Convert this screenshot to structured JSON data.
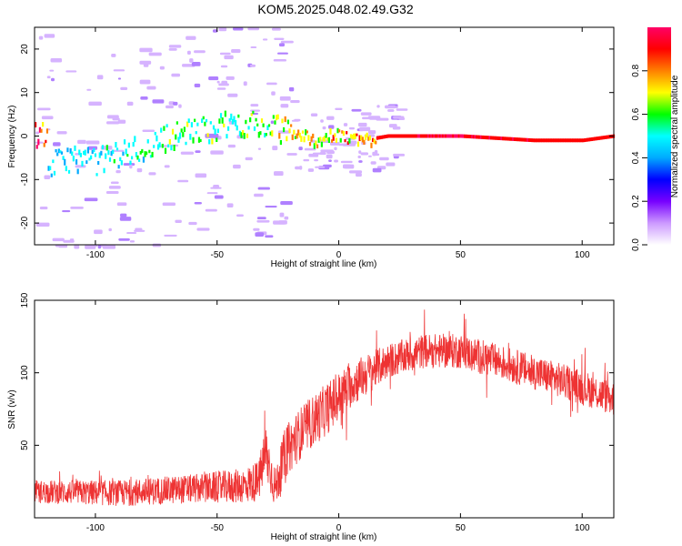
{
  "title": "KOM5.2025.048.02.49.G32",
  "chart_data": [
    {
      "type": "heatmap",
      "xlabel": "Height of straight line (km)",
      "ylabel": "Frequency (Hz)",
      "xlim": [
        -125,
        113
      ],
      "ylim": [
        -25,
        25
      ],
      "xticks": [
        -100,
        -50,
        0,
        50,
        100
      ],
      "yticks": [
        -20,
        -10,
        0,
        10,
        20
      ],
      "colorbar": {
        "label": "Normalized spectral amplitude",
        "range": [
          0,
          1
        ],
        "ticks": [
          "0.0",
          "0.2",
          "0.4",
          "0.6",
          "0.8"
        ],
        "tick_values": [
          0.0,
          0.2,
          0.4,
          0.6,
          0.8
        ],
        "colors": [
          "#ffffff",
          "#cc99ff",
          "#7700ff",
          "#0000ff",
          "#00aaff",
          "#00ffff",
          "#00ff00",
          "#ffff00",
          "#ff8000",
          "#ff0000",
          "#ff0066"
        ]
      },
      "ridge": [
        {
          "x": -120,
          "f": -7,
          "a": 0.45
        },
        {
          "x": -110,
          "f": -5,
          "a": 0.45
        },
        {
          "x": -100,
          "f": -6,
          "a": 0.5
        },
        {
          "x": -90,
          "f": -4,
          "a": 0.5
        },
        {
          "x": -80,
          "f": -3,
          "a": 0.55
        },
        {
          "x": -70,
          "f": 0,
          "a": 0.6
        },
        {
          "x": -60,
          "f": 1,
          "a": 0.6
        },
        {
          "x": -50,
          "f": 2,
          "a": 0.6
        },
        {
          "x": -40,
          "f": 3,
          "a": 0.6
        },
        {
          "x": -30,
          "f": 2,
          "a": 0.65
        },
        {
          "x": -20,
          "f": 1,
          "a": 0.75
        },
        {
          "x": -10,
          "f": -1,
          "a": 0.75
        },
        {
          "x": 0,
          "f": 0,
          "a": 0.8
        },
        {
          "x": 10,
          "f": -1,
          "a": 0.82
        },
        {
          "x": 20,
          "f": 0,
          "a": 0.9
        },
        {
          "x": 50,
          "f": 0,
          "a": 0.92
        },
        {
          "x": 80,
          "f": -1,
          "a": 0.9
        },
        {
          "x": 100,
          "f": -1,
          "a": 0.9
        },
        {
          "x": 113,
          "f": 0,
          "a": 0.9
        }
      ]
    },
    {
      "type": "line",
      "xlabel": "Height of straight line (km)",
      "ylabel": "SNR (v/v)",
      "xlim": [
        -125,
        113
      ],
      "ylim": [
        0,
        150
      ],
      "xticks": [
        -100,
        -50,
        0,
        50,
        100
      ],
      "yticks": [
        50,
        100,
        150
      ],
      "color": "#ee3333",
      "envelope": [
        {
          "x": -125,
          "mean": 18,
          "spread": 8
        },
        {
          "x": -90,
          "mean": 17,
          "spread": 9
        },
        {
          "x": -60,
          "mean": 20,
          "spread": 10
        },
        {
          "x": -40,
          "mean": 22,
          "spread": 12
        },
        {
          "x": -33,
          "mean": 25,
          "spread": 14
        },
        {
          "x": -30,
          "mean": 45,
          "spread": 20
        },
        {
          "x": -26,
          "mean": 20,
          "spread": 14
        },
        {
          "x": -22,
          "mean": 45,
          "spread": 18
        },
        {
          "x": -15,
          "mean": 60,
          "spread": 18
        },
        {
          "x": -5,
          "mean": 75,
          "spread": 18
        },
        {
          "x": 5,
          "mean": 92,
          "spread": 16
        },
        {
          "x": 20,
          "mean": 108,
          "spread": 12
        },
        {
          "x": 35,
          "mean": 115,
          "spread": 12
        },
        {
          "x": 50,
          "mean": 115,
          "spread": 12
        },
        {
          "x": 65,
          "mean": 108,
          "spread": 12
        },
        {
          "x": 85,
          "mean": 98,
          "spread": 12
        },
        {
          "x": 100,
          "mean": 90,
          "spread": 12
        },
        {
          "x": 113,
          "mean": 82,
          "spread": 12
        }
      ]
    }
  ]
}
